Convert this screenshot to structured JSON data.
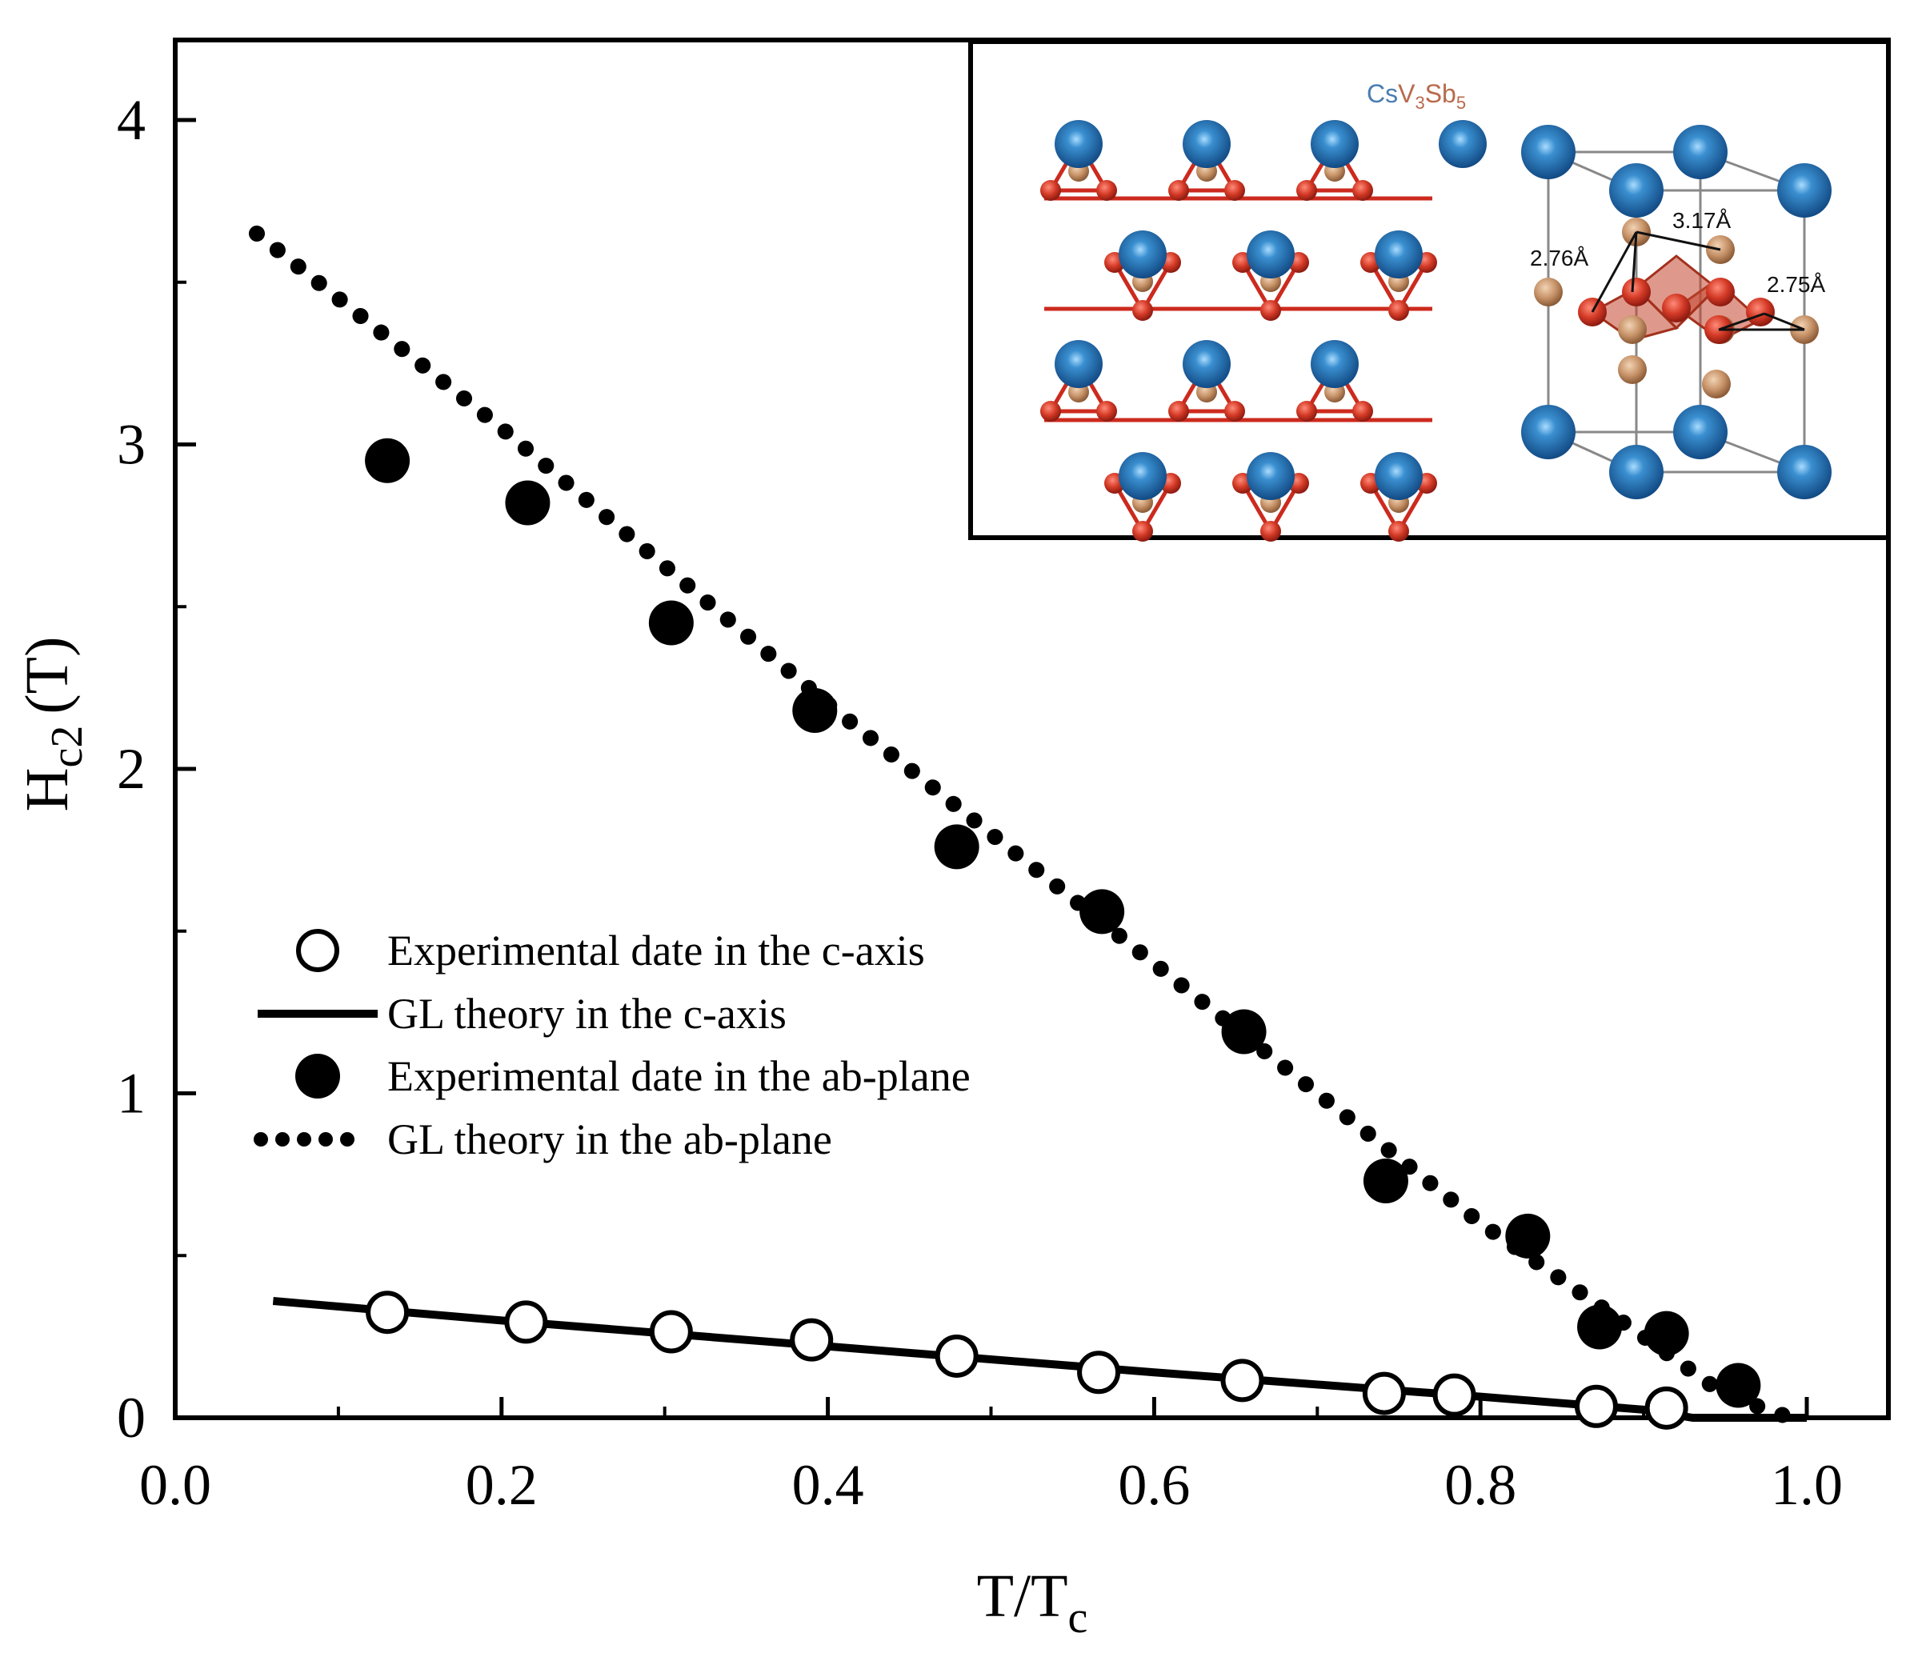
{
  "chart_data": {
    "type": "scatter",
    "xlabel": "T/T",
    "xlabel_sub": "c",
    "ylabel": "H",
    "ylabel_sub": "c2",
    "ylabel_unit": "(T)",
    "xlim": [
      0.0,
      1.05
    ],
    "ylim": [
      0,
      4.25
    ],
    "xticks": [
      0.0,
      0.2,
      0.4,
      0.6,
      0.8,
      1.0
    ],
    "xtick_labels": [
      "0.0",
      "0.2",
      "0.4",
      "0.6",
      "0.8",
      "1.0"
    ],
    "yticks": [
      0,
      1,
      2,
      3,
      4
    ],
    "ytick_labels": [
      "0",
      "1",
      "2",
      "3",
      "4"
    ],
    "series": [
      {
        "name": "Experimental date in the c-axis",
        "kind": "open-circle",
        "x": [
          0.13,
          0.215,
          0.304,
          0.39,
          0.479,
          0.566,
          0.654,
          0.741,
          0.784,
          0.871,
          0.914
        ],
        "y": [
          0.325,
          0.295,
          0.265,
          0.24,
          0.19,
          0.14,
          0.115,
          0.075,
          0.07,
          0.035,
          0.03
        ]
      },
      {
        "name": "GL theory in the c-axis",
        "kind": "solid-line",
        "x": [
          0.06,
          0.2,
          0.4,
          0.6,
          0.8,
          0.9,
          0.93,
          1.0
        ],
        "y": [
          0.36,
          0.3,
          0.22,
          0.14,
          0.065,
          0.025,
          0.0,
          0.0
        ]
      },
      {
        "name": "Experimental date in the ab-plane",
        "kind": "filled-circle",
        "x": [
          0.13,
          0.216,
          0.304,
          0.392,
          0.479,
          0.568,
          0.655,
          0.742,
          0.829,
          0.873,
          0.914,
          0.958
        ],
        "y": [
          2.95,
          2.82,
          2.45,
          2.18,
          1.76,
          1.56,
          1.19,
          0.73,
          0.56,
          0.28,
          0.26,
          0.1
        ]
      },
      {
        "name": "GL theory in the ab-plane",
        "kind": "dotted-line",
        "x": [
          0.05,
          0.2,
          0.4,
          0.6,
          0.8,
          0.9,
          0.95,
          0.99
        ],
        "y": [
          3.65,
          3.05,
          2.2,
          1.4,
          0.6,
          0.25,
          0.07,
          0.0
        ]
      }
    ],
    "legend": {
      "position": "middle-left",
      "labels": [
        "Experimental date in the c-axis",
        "GL theory in the c-axis",
        "Experimental date in the ab-plane",
        "GL theory in the ab-plane"
      ]
    },
    "inset": {
      "position": "top-right",
      "formula_base": [
        "Cs",
        "V",
        "Sb"
      ],
      "formula_sub": [
        "3",
        "5"
      ],
      "distances": [
        "3.17Å",
        "2.76Å",
        "2.75Å"
      ],
      "colors": {
        "cs": "#1f6fb0",
        "v": "#cc2a1e",
        "sb": "#c0895c"
      }
    }
  }
}
